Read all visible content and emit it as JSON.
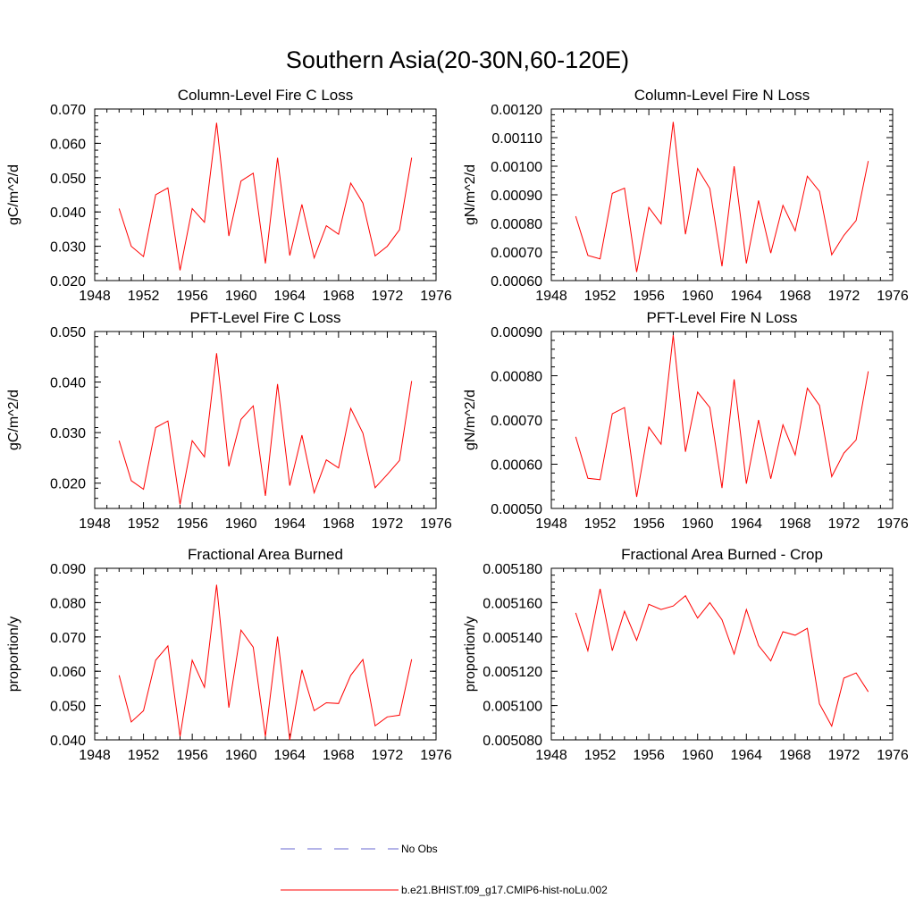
{
  "figure": {
    "title": "Southern Asia(20-30N,60-120E)"
  },
  "legend": {
    "items": [
      {
        "label": "No Obs",
        "color": "#6a6ad0",
        "dash": "dashed"
      },
      {
        "label": "b.e21.BHIST.f09_g17.CMIP6-hist-noLu.002",
        "color": "#ff0000",
        "dash": "solid"
      }
    ]
  },
  "chart_data": [
    {
      "type": "line",
      "title": "Column-Level Fire C Loss",
      "ylabel": "gC/m^2/d",
      "xlim": [
        1948,
        1976
      ],
      "ylim": [
        0.02,
        0.07
      ],
      "xticks": [
        "1948",
        "1952",
        "1956",
        "1960",
        "1964",
        "1968",
        "1972",
        "1976"
      ],
      "yticks": [
        "0.020",
        "0.030",
        "0.040",
        "0.050",
        "0.060",
        "0.070"
      ],
      "x": [
        1950,
        1951,
        1952,
        1953,
        1954,
        1955,
        1956,
        1957,
        1958,
        1959,
        1960,
        1961,
        1962,
        1963,
        1964,
        1965,
        1966,
        1967,
        1968,
        1969,
        1970,
        1971,
        1972,
        1973,
        1974
      ],
      "series": [
        {
          "name": "b.e21.BHIST.f09_g17.CMIP6-hist-noLu.002",
          "color": "#ff0000",
          "values": [
            0.041,
            0.03,
            0.027,
            0.045,
            0.047,
            0.023,
            0.041,
            0.037,
            0.066,
            0.033,
            0.049,
            0.0513,
            0.025,
            0.0558,
            0.0273,
            0.0422,
            0.0266,
            0.036,
            0.0335,
            0.0484,
            0.0426,
            0.0272,
            0.03,
            0.0348,
            0.0558
          ]
        }
      ]
    },
    {
      "type": "line",
      "title": "Column-Level Fire N Loss",
      "ylabel": "gN/m^2/d",
      "xlim": [
        1948,
        1976
      ],
      "ylim": [
        0.0006,
        0.0012
      ],
      "xticks": [
        "1948",
        "1952",
        "1956",
        "1960",
        "1964",
        "1968",
        "1972",
        "1976"
      ],
      "yticks": [
        "0.00060",
        "0.00070",
        "0.00080",
        "0.00090",
        "0.00100",
        "0.00110",
        "0.00120"
      ],
      "x": [
        1950,
        1951,
        1952,
        1953,
        1954,
        1955,
        1956,
        1957,
        1958,
        1959,
        1960,
        1961,
        1962,
        1963,
        1964,
        1965,
        1966,
        1967,
        1968,
        1969,
        1970,
        1971,
        1972,
        1973,
        1974
      ],
      "series": [
        {
          "name": "b.e21.BHIST.f09_g17.CMIP6-hist-noLu.002",
          "color": "#ff0000",
          "values": [
            0.000825,
            0.000688,
            0.000676,
            0.000905,
            0.000923,
            0.00063,
            0.000856,
            0.000798,
            0.001155,
            0.000762,
            0.000992,
            0.000922,
            0.00065,
            0.001,
            0.00066,
            0.00088,
            0.000696,
            0.000863,
            0.000774,
            0.000965,
            0.000912,
            0.00069,
            0.000758,
            0.00081,
            0.001018
          ]
        }
      ]
    },
    {
      "type": "line",
      "title": "PFT-Level Fire C Loss",
      "ylabel": "gC/m^2/d",
      "xlim": [
        1948,
        1976
      ],
      "ylim": [
        0.015,
        0.05
      ],
      "xticks": [
        "1948",
        "1952",
        "1956",
        "1960",
        "1964",
        "1968",
        "1972",
        "1976"
      ],
      "yticks": [
        "0.020",
        "0.030",
        "0.040",
        "0.050"
      ],
      "ytick_values": [
        0.02,
        0.03,
        0.04,
        0.05
      ],
      "x": [
        1950,
        1951,
        1952,
        1953,
        1954,
        1955,
        1956,
        1957,
        1958,
        1959,
        1960,
        1961,
        1962,
        1963,
        1964,
        1965,
        1966,
        1967,
        1968,
        1969,
        1970,
        1971,
        1972,
        1973,
        1974
      ],
      "series": [
        {
          "name": "b.e21.BHIST.f09_g17.CMIP6-hist-noLu.002",
          "color": "#ff0000",
          "values": [
            0.0284,
            0.0205,
            0.0188,
            0.031,
            0.0323,
            0.0158,
            0.0284,
            0.0252,
            0.0457,
            0.0233,
            0.0326,
            0.0353,
            0.0175,
            0.0396,
            0.0195,
            0.0295,
            0.0181,
            0.0246,
            0.023,
            0.0348,
            0.0299,
            0.0191,
            0.0217,
            0.0245,
            0.0402
          ]
        }
      ]
    },
    {
      "type": "line",
      "title": "PFT-Level Fire N Loss",
      "ylabel": "gN/m^2/d",
      "xlim": [
        1948,
        1976
      ],
      "ylim": [
        0.0005,
        0.0009
      ],
      "xticks": [
        "1948",
        "1952",
        "1956",
        "1960",
        "1964",
        "1968",
        "1972",
        "1976"
      ],
      "yticks": [
        "0.00050",
        "0.00060",
        "0.00070",
        "0.00080",
        "0.00090"
      ],
      "x": [
        1950,
        1951,
        1952,
        1953,
        1954,
        1955,
        1956,
        1957,
        1958,
        1959,
        1960,
        1961,
        1962,
        1963,
        1964,
        1965,
        1966,
        1967,
        1968,
        1969,
        1970,
        1971,
        1972,
        1973,
        1974
      ],
      "series": [
        {
          "name": "b.e21.BHIST.f09_g17.CMIP6-hist-noLu.002",
          "color": "#ff0000",
          "values": [
            0.000662,
            0.000568,
            0.000565,
            0.000714,
            0.000728,
            0.000526,
            0.000684,
            0.000645,
            0.000892,
            0.000628,
            0.000763,
            0.000728,
            0.000546,
            0.000792,
            0.000556,
            0.0007,
            0.000567,
            0.000689,
            0.000621,
            0.000772,
            0.000733,
            0.000572,
            0.000625,
            0.000655,
            0.00081
          ]
        }
      ]
    },
    {
      "type": "line",
      "title": "Fractional Area Burned",
      "ylabel": "proportion/y",
      "xlim": [
        1948,
        1976
      ],
      "ylim": [
        0.04,
        0.09
      ],
      "xticks": [
        "1948",
        "1952",
        "1956",
        "1960",
        "1964",
        "1968",
        "1972",
        "1976"
      ],
      "yticks": [
        "0.040",
        "0.050",
        "0.060",
        "0.070",
        "0.080",
        "0.090"
      ],
      "x": [
        1950,
        1951,
        1952,
        1953,
        1954,
        1955,
        1956,
        1957,
        1958,
        1959,
        1960,
        1961,
        1962,
        1963,
        1964,
        1965,
        1966,
        1967,
        1968,
        1969,
        1970,
        1971,
        1972,
        1973,
        1974
      ],
      "series": [
        {
          "name": "b.e21.BHIST.f09_g17.CMIP6-hist-noLu.002",
          "color": "#ff0000",
          "values": [
            0.0588,
            0.0452,
            0.0485,
            0.0632,
            0.0674,
            0.041,
            0.0632,
            0.0553,
            0.0852,
            0.0494,
            0.072,
            0.067,
            0.041,
            0.0701,
            0.04,
            0.0604,
            0.0485,
            0.0508,
            0.0506,
            0.0588,
            0.0634,
            0.0441,
            0.0467,
            0.0472,
            0.0635
          ]
        }
      ]
    },
    {
      "type": "line",
      "title": "Fractional Area Burned - Crop",
      "ylabel": "proportion/y",
      "xlim": [
        1948,
        1976
      ],
      "ylim": [
        0.00508,
        0.00518
      ],
      "xticks": [
        "1948",
        "1952",
        "1956",
        "1960",
        "1964",
        "1968",
        "1972",
        "1976"
      ],
      "yticks": [
        "0.005080",
        "0.005100",
        "0.005120",
        "0.005140",
        "0.005160",
        "0.005180"
      ],
      "x": [
        1950,
        1951,
        1952,
        1953,
        1954,
        1955,
        1956,
        1957,
        1958,
        1959,
        1960,
        1961,
        1962,
        1963,
        1964,
        1965,
        1966,
        1967,
        1968,
        1969,
        1970,
        1971,
        1972,
        1973,
        1974
      ],
      "series": [
        {
          "name": "b.e21.BHIST.f09_g17.CMIP6-hist-noLu.002",
          "color": "#ff0000",
          "values": [
            0.005154,
            0.005132,
            0.005168,
            0.005132,
            0.005155,
            0.005138,
            0.005159,
            0.005156,
            0.005158,
            0.005164,
            0.005151,
            0.00516,
            0.00515,
            0.00513,
            0.005156,
            0.005135,
            0.005126,
            0.005143,
            0.005141,
            0.005145,
            0.005101,
            0.005088,
            0.005116,
            0.005119,
            0.005108
          ]
        }
      ]
    }
  ]
}
